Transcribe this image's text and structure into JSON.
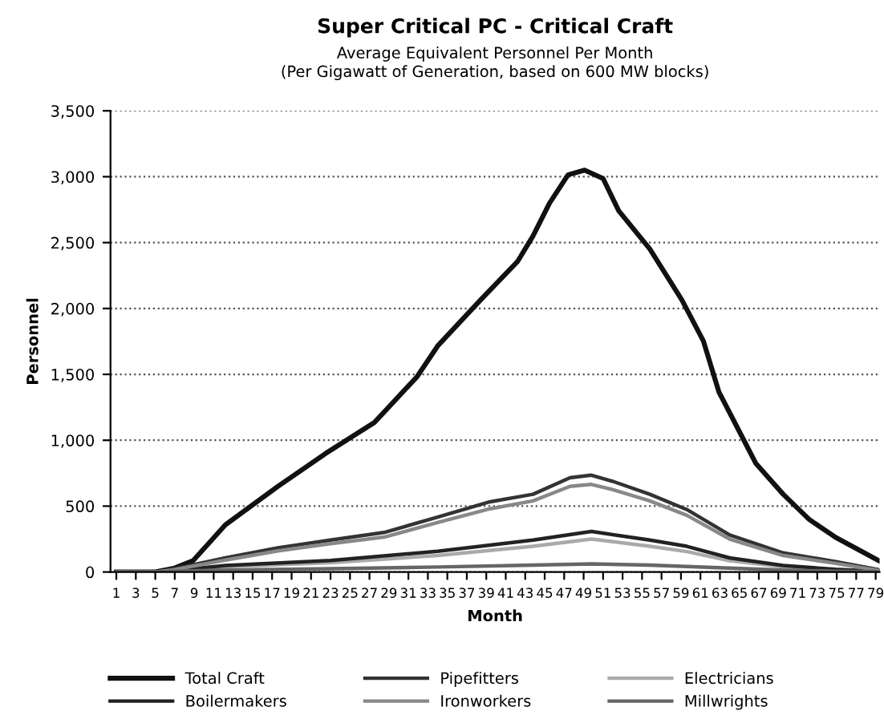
{
  "chart_data": {
    "type": "line",
    "title": "Super Critical PC - Critical Craft",
    "subtitle": "Average Equivalent Personnel Per Month\n(Per Gigawatt of Generation, based on 600 MW blocks)",
    "xlabel": "Month",
    "ylabel": "Personnel",
    "xlim": [
      0.4,
      79.4
    ],
    "xticks": [
      1,
      3,
      5,
      7,
      9,
      11,
      13,
      15,
      17,
      19,
      21,
      23,
      25,
      27,
      29,
      31,
      33,
      35,
      37,
      39,
      41,
      43,
      45,
      47,
      49,
      51,
      53,
      55,
      57,
      59,
      61,
      63,
      65,
      67,
      69,
      71,
      73,
      75,
      77,
      79
    ],
    "ylim": [
      0,
      3500
    ],
    "yticks": [
      0,
      500,
      {
        "value": 1000,
        "label": "1,000"
      },
      {
        "value": 1500,
        "label": "1,500"
      },
      {
        "value": 2000,
        "label": "2,000"
      },
      {
        "value": 2500,
        "label": "2,500"
      },
      {
        "value": 3000,
        "label": "3,000"
      },
      {
        "value": 3500,
        "label": "3,500"
      }
    ],
    "grid": "y",
    "legend": "bottom",
    "line_style": "solid",
    "marker": "none",
    "series": [
      {
        "name": "Total Craft",
        "color": "#111111",
        "x": [
          1,
          5,
          7,
          8.9,
          12.2,
          17.6,
          22.5,
          27.5,
          31.9,
          34,
          38.4,
          42.2,
          43.8,
          45.5,
          47.4,
          49.1,
          51,
          52.6,
          55.8,
          59.1,
          61.3,
          62.9,
          65.6,
          66.7,
          69.5,
          72.2,
          74.9,
          79.3
        ],
        "values": [
          0,
          0,
          30,
          87,
          358,
          650,
          900,
          1134,
          1483,
          1715,
          2064,
          2355,
          2550,
          2800,
          3014,
          3050,
          2986,
          2742,
          2451,
          2064,
          1753,
          1366,
          980,
          823,
          590,
          397,
          262,
          87
        ]
      },
      {
        "name": "Pipefitters",
        "color": "#333333",
        "x": [
          1,
          5,
          6.7,
          12.2,
          17.6,
          23,
          28.5,
          34,
          39.4,
          43.8,
          47.6,
          49.8,
          52,
          55.8,
          59.6,
          64,
          69.5,
          74.9,
          79.3
        ],
        "values": [
          0,
          0,
          20,
          107,
          184,
          242,
          300,
          416,
          533,
          590,
          715,
          735,
          688,
          590,
          474,
          281,
          145,
          79,
          17
        ]
      },
      {
        "name": "Electricians",
        "color": "#aaaaaa",
        "x": [
          1,
          5,
          7,
          12.2,
          23,
          34,
          43.8,
          49.8,
          55.8,
          59.6,
          64,
          69.5,
          74.9,
          79.3
        ],
        "values": [
          0,
          0,
          10,
          40,
          70,
          125,
          195,
          250,
          195,
          155,
          85,
          40,
          16,
          4
        ]
      },
      {
        "name": "Boilermakers",
        "color": "#222222",
        "x": [
          1,
          5,
          7,
          12.2,
          23,
          34,
          43.8,
          49.8,
          55.8,
          59.6,
          64,
          69.5,
          74.9,
          79.3
        ],
        "values": [
          0,
          0,
          12,
          49,
          87,
          157,
          242,
          308,
          242,
          195,
          107,
          49,
          20,
          5
        ]
      },
      {
        "name": "Ironworkers",
        "color": "#888888",
        "x": [
          1,
          5,
          6.7,
          12.2,
          17.6,
          23,
          28.5,
          34,
          39.4,
          43.8,
          47.6,
          49.8,
          52,
          55.8,
          59.6,
          64,
          69.5,
          74.9,
          79.3
        ],
        "values": [
          0,
          0,
          15,
          90,
          160,
          215,
          265,
          375,
          480,
          540,
          650,
          665,
          625,
          540,
          430,
          250,
          125,
          65,
          12
        ]
      },
      {
        "name": "Millwrights",
        "color": "#666666",
        "x": [
          1,
          5,
          7,
          12.2,
          23,
          34,
          43.8,
          49.8,
          55.8,
          64,
          69.5,
          74.9,
          79.3
        ],
        "values": [
          0,
          0,
          5,
          15,
          25,
          38,
          52,
          62,
          52,
          30,
          14,
          6,
          2
        ]
      }
    ]
  }
}
